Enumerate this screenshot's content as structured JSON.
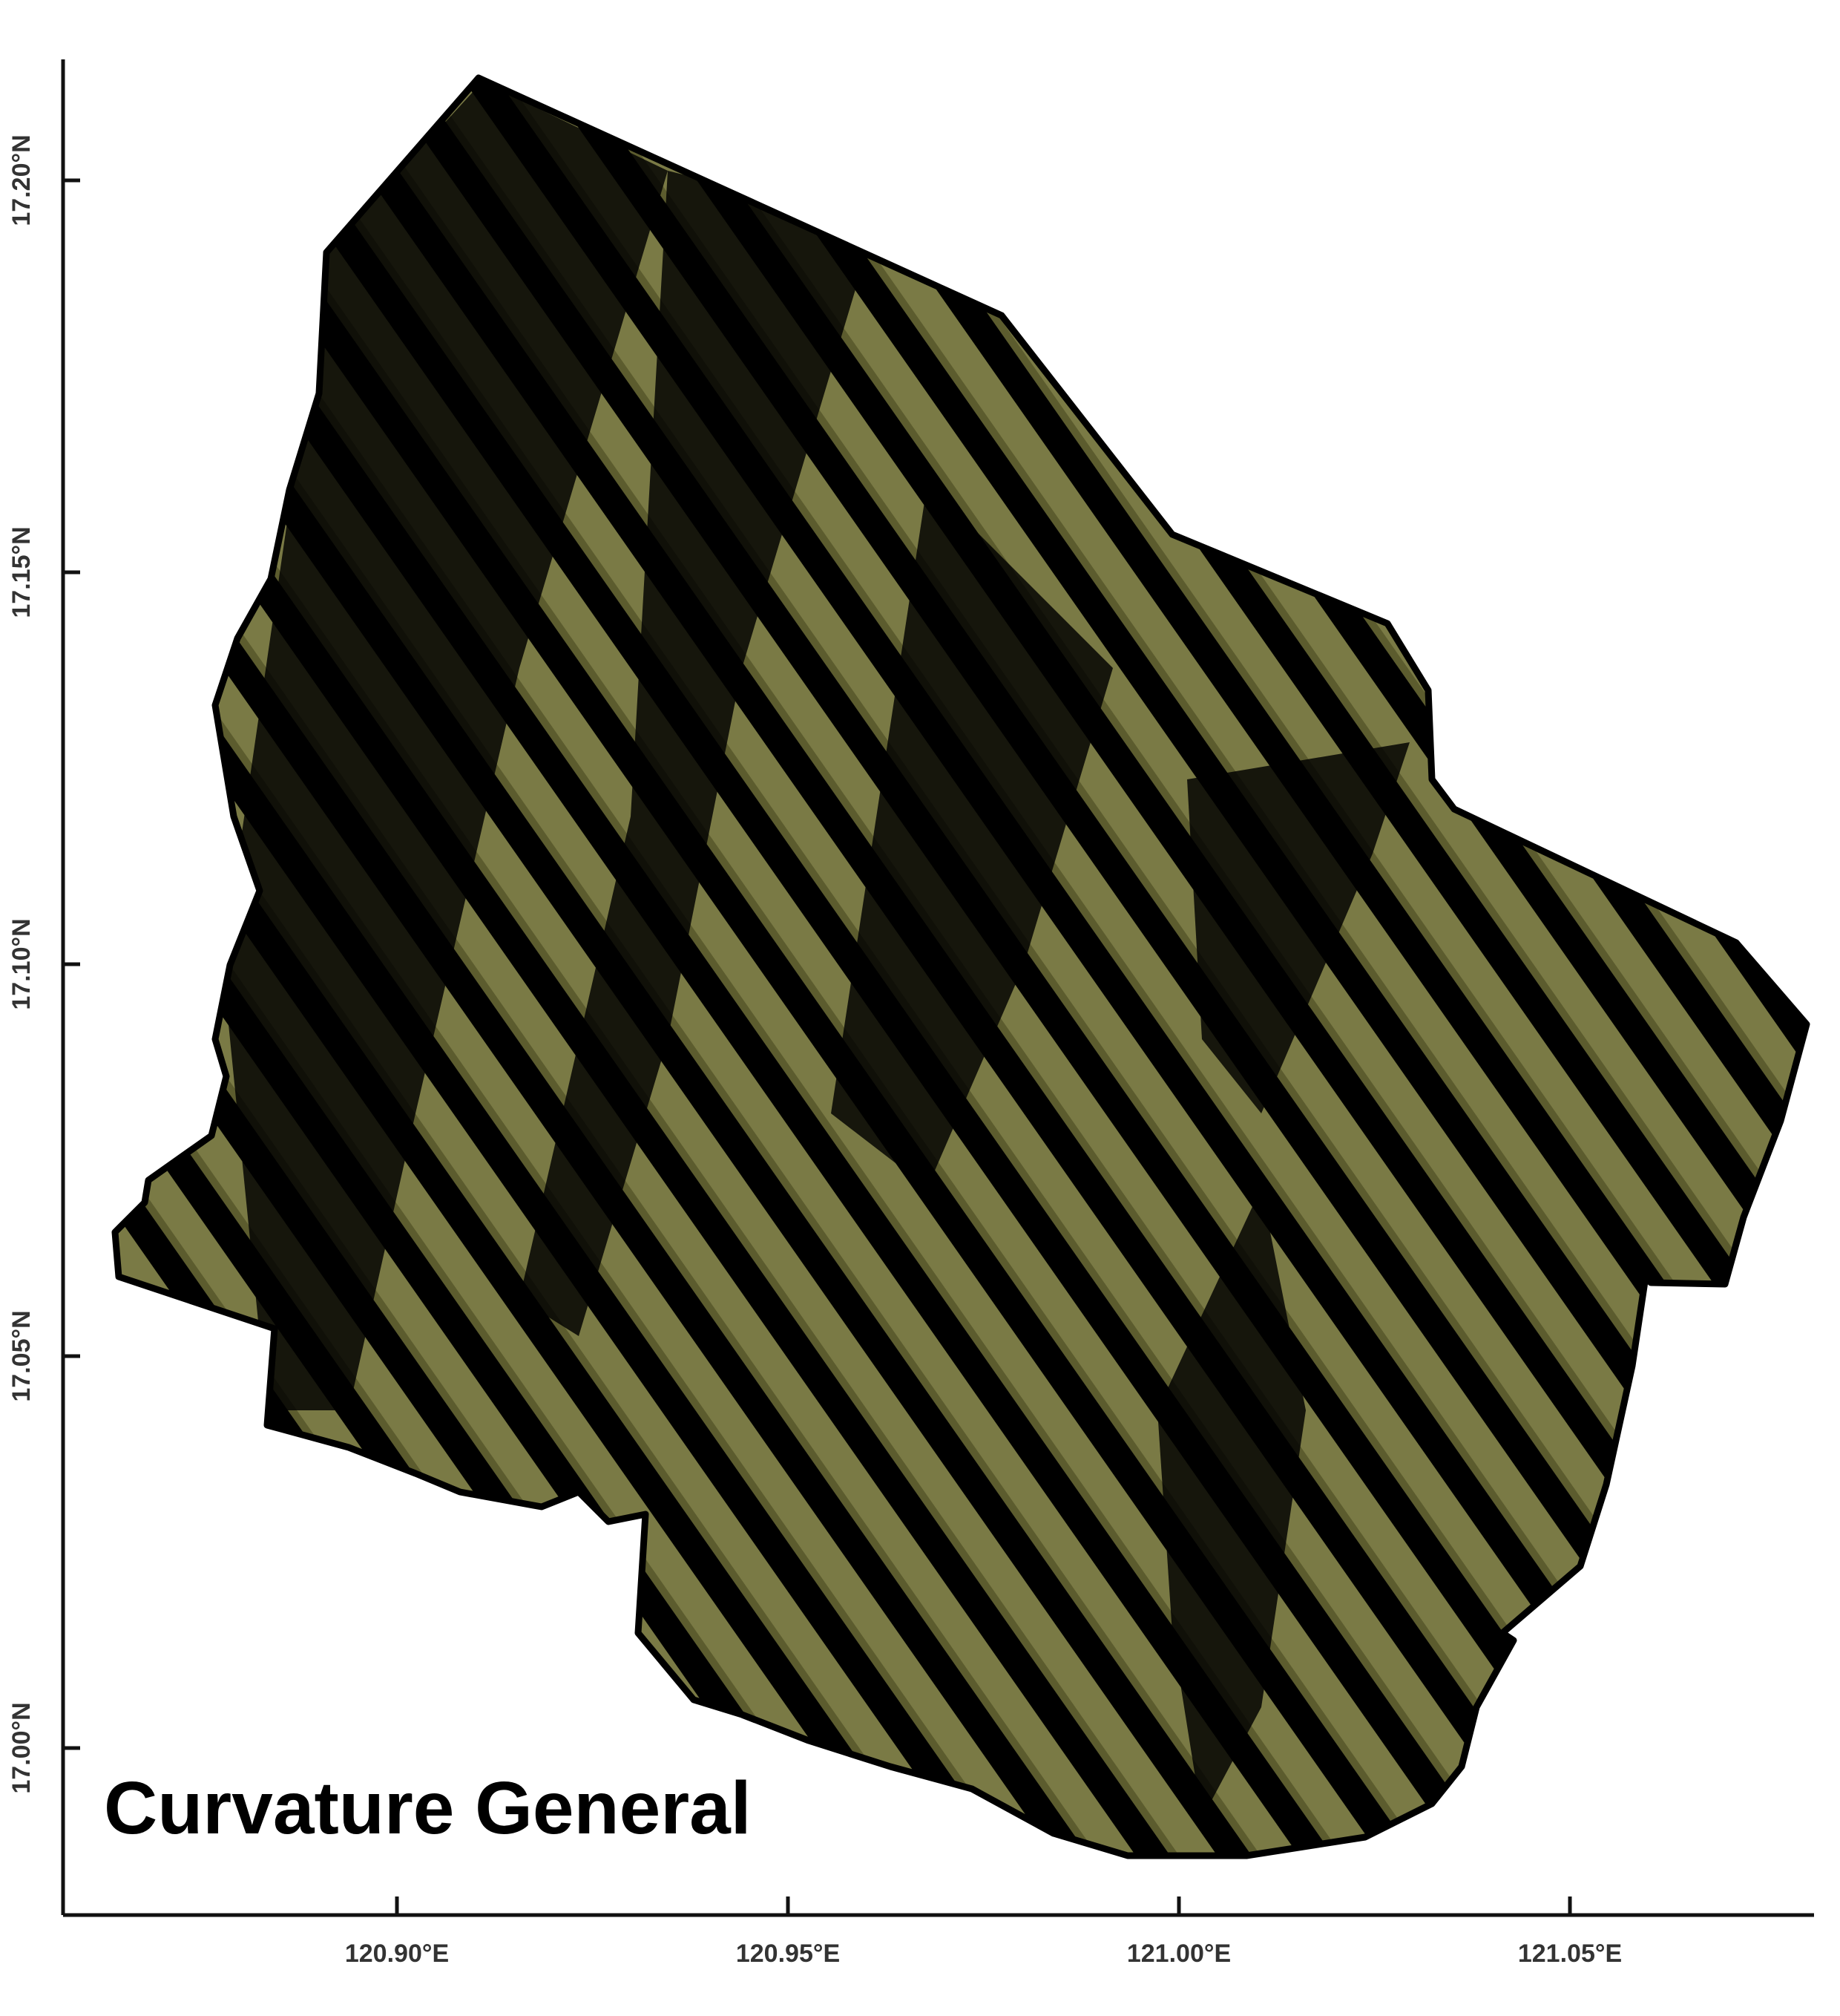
{
  "map": {
    "title": "Curvature General",
    "colors": {
      "terrain_light": "#7a7a45",
      "terrain_mid": "#5c5c2e",
      "terrain_dark": "#000000",
      "boundary": "#000000",
      "axis": "#111111"
    },
    "x_ticks": [
      {
        "label": "120.90°E",
        "value": 120.9
      },
      {
        "label": "120.95°E",
        "value": 120.95
      },
      {
        "label": "121.00°E",
        "value": 121.0
      },
      {
        "label": "121.05°E",
        "value": 121.05
      }
    ],
    "y_ticks": [
      {
        "label": "17.20°N",
        "value": 17.2
      },
      {
        "label": "17.15°N",
        "value": 17.15
      },
      {
        "label": "17.10°N",
        "value": 17.1
      },
      {
        "label": "17.05°N",
        "value": 17.05
      },
      {
        "label": "17.00°N",
        "value": 17.0
      }
    ]
  }
}
